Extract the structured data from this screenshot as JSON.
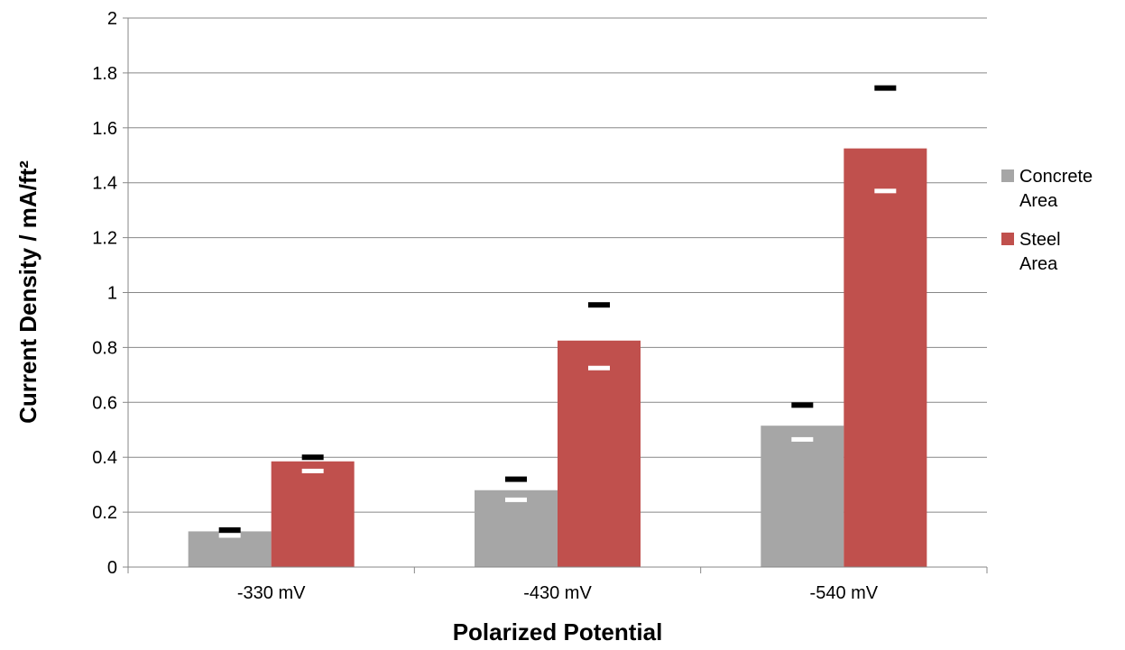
{
  "chart_data": {
    "type": "bar",
    "xlabel": "Polarized Potential",
    "ylabel": "Current Density / mA/ft²",
    "ylim": [
      0,
      2
    ],
    "yticks": [
      "0",
      "0.2",
      "0.4",
      "0.6",
      "0.8",
      "1",
      "1.2",
      "1.4",
      "1.6",
      "1.8",
      "2"
    ],
    "categories": [
      "-330 mV",
      "-430 mV",
      "-540 mV"
    ],
    "grid": true,
    "legend_position": "right",
    "series": [
      {
        "name_lines": [
          "Concrete",
          "Area"
        ],
        "color": "#A6A6A6",
        "values": [
          0.13,
          0.28,
          0.515
        ],
        "error_upper": [
          0.135,
          0.32,
          0.59
        ],
        "error_lower": [
          0.115,
          0.245,
          0.465
        ]
      },
      {
        "name_lines": [
          "Steel",
          "Area"
        ],
        "color": "#C0504D",
        "values": [
          0.385,
          0.825,
          1.525
        ],
        "error_upper": [
          0.4,
          0.955,
          1.745
        ],
        "error_lower": [
          0.35,
          0.725,
          1.37
        ]
      }
    ]
  }
}
